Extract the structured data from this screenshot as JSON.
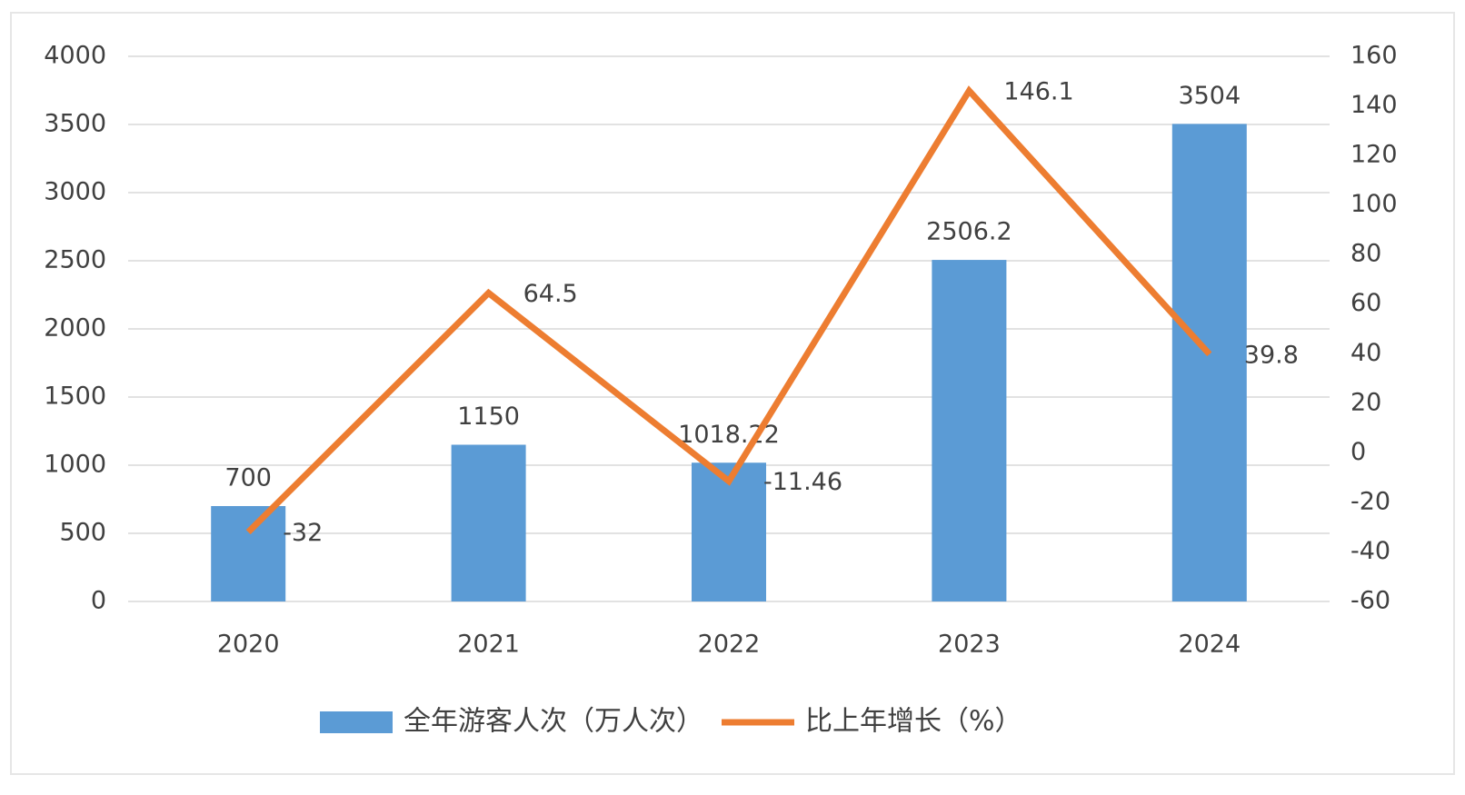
{
  "chart_data": {
    "type": "bar",
    "categories": [
      "2020",
      "2021",
      "2022",
      "2023",
      "2024"
    ],
    "series": [
      {
        "name": "全年游客人次（万人次）",
        "type": "bar",
        "color": "#5b9bd5",
        "values": [
          700,
          1150,
          1018.22,
          2506.2,
          3504
        ]
      },
      {
        "name": "比上年增长（%）",
        "type": "line",
        "axis": "y2",
        "color": "#ed7d31",
        "values": [
          -32,
          64.5,
          -11.46,
          146.1,
          39.8
        ]
      }
    ],
    "ylim": [
      0,
      4000
    ],
    "yticks": [
      0,
      500,
      1000,
      1500,
      2000,
      2500,
      3000,
      3500,
      4000
    ],
    "y2lim": [
      -60,
      160
    ],
    "y2ticks": [
      -60,
      -40,
      -20,
      0,
      20,
      40,
      60,
      80,
      100,
      120,
      140,
      160
    ],
    "grid": true,
    "legend": "bottom"
  }
}
